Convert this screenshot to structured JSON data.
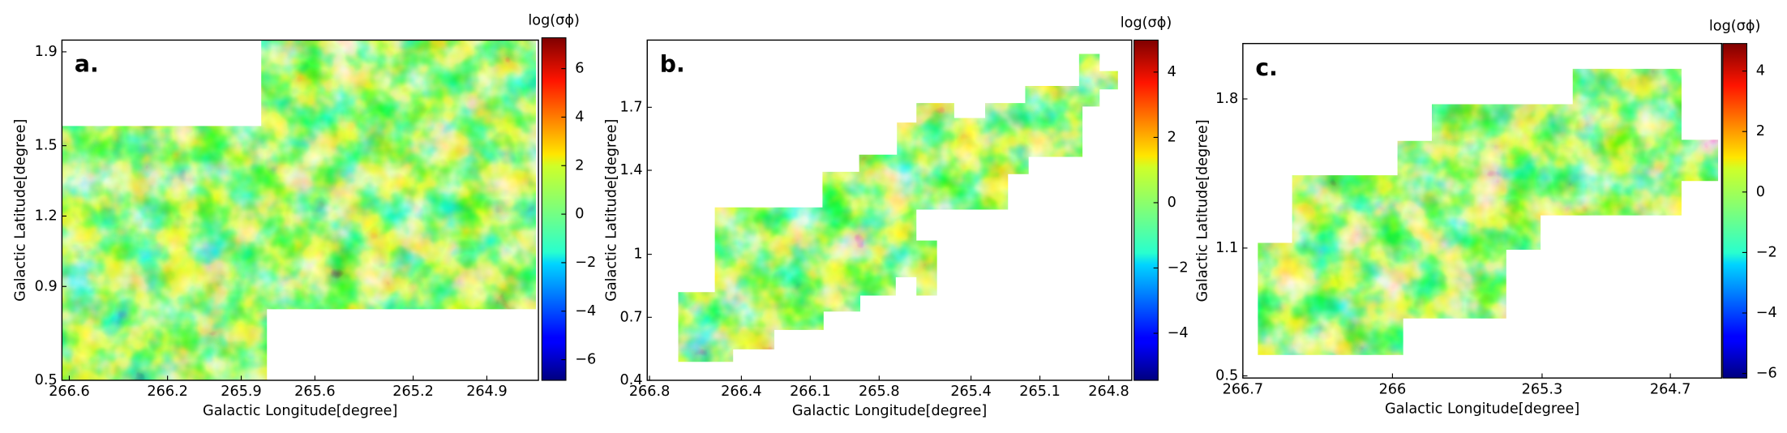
{
  "chart_data": [
    {
      "type": "heatmap",
      "label": "a.",
      "xlabel": "Galactic Longitude[degree]",
      "ylabel": "Galactic Latitude[degree]",
      "xlim": [
        266.63,
        264.69
      ],
      "xticks": [
        266.6,
        266.2,
        265.9,
        265.6,
        265.2,
        264.9
      ],
      "ylim": [
        0.5,
        1.95
      ],
      "yticks": [
        0.5,
        0.9,
        1.2,
        1.5,
        1.9
      ],
      "colormap": "jet",
      "colorbar": {
        "label": "log(σϕ)",
        "lim": [
          -6.85,
          7.27
        ],
        "ticks": [
          {
            "value": -6,
            "label": "−6"
          },
          {
            "value": -4,
            "label": "−4"
          },
          {
            "value": -2,
            "label": "−2"
          },
          0,
          2,
          4,
          6
        ]
      }
    },
    {
      "type": "heatmap",
      "label": "b.",
      "xlabel": "Galactic Longitude[degree]",
      "ylabel": "Galactic Latitude[degree]",
      "xlim": [
        266.81,
        264.7
      ],
      "xticks": [
        266.8,
        266.4,
        266.1,
        265.8,
        265.4,
        265.1,
        264.8
      ],
      "ylim": [
        0.4,
        2.02
      ],
      "yticks": [
        0.4,
        0.7,
        1.0,
        1.4,
        1.7
      ],
      "colormap": "jet",
      "colorbar": {
        "label": "log(σϕ)",
        "lim": [
          -5.44,
          4.98
        ],
        "ticks": [
          {
            "value": -4,
            "label": "−4"
          },
          {
            "value": -2,
            "label": "−2"
          },
          0,
          2,
          4
        ]
      }
    },
    {
      "type": "heatmap",
      "label": "c.",
      "xlabel": "Galactic Longitude[degree]",
      "ylabel": "Galactic Latitude[degree]",
      "xlim": [
        266.7,
        264.46
      ],
      "xticks": [
        266.7,
        266.0,
        265.3,
        264.7
      ],
      "ylim": [
        0.49,
        2.06
      ],
      "yticks": [
        0.5,
        1.1,
        1.8
      ],
      "colormap": "jet",
      "colorbar": {
        "label": "log(σϕ)",
        "lim": [
          -6.15,
          4.91
        ],
        "ticks": [
          {
            "value": -6,
            "label": "−6"
          },
          {
            "value": -4,
            "label": "−4"
          },
          {
            "value": -2,
            "label": "−2"
          },
          0,
          2,
          4
        ]
      }
    }
  ]
}
